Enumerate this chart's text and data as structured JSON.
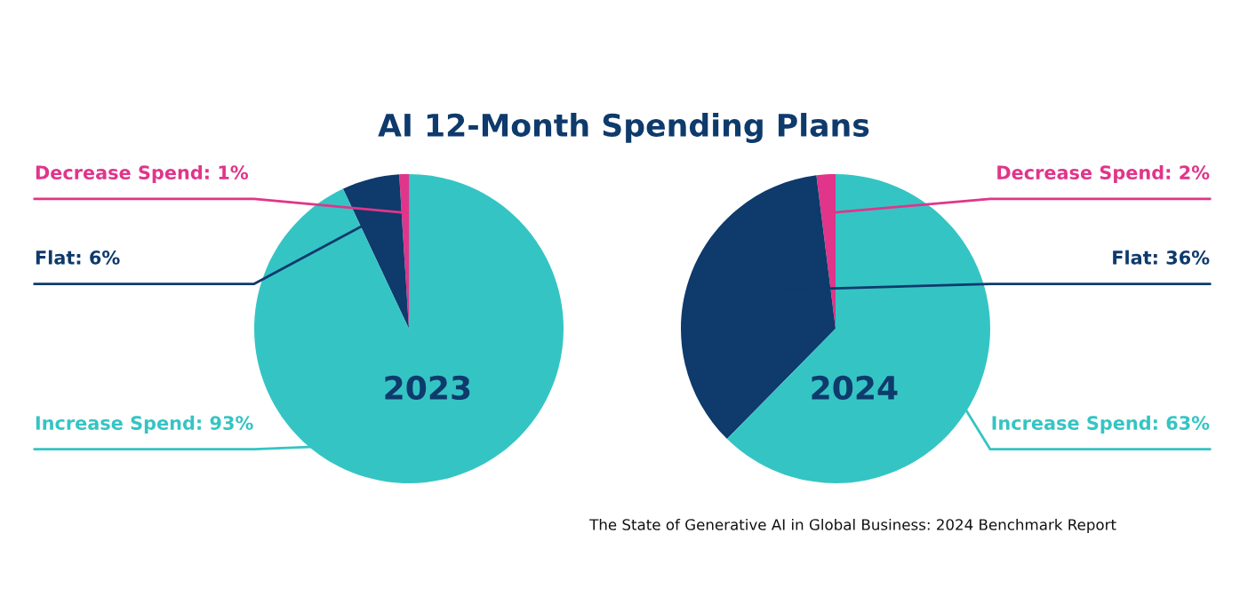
{
  "chart_data": [
    {
      "type": "pie",
      "title": "AI 12-Month Spending Plans",
      "subtitle": "2023",
      "categories": [
        "Decrease Spend: 1%",
        "Flat: 6%",
        "Increase Spend: 93%"
      ],
      "values": [
        1,
        6,
        93
      ],
      "colors": [
        "#e0358a",
        "#0e3a6c",
        "#35c4c4"
      ]
    },
    {
      "type": "pie",
      "subtitle": "2024",
      "categories": [
        "Decrease Spend: 2%",
        "Flat: 36%",
        "Increase Spend: 63%"
      ],
      "values": [
        2,
        36,
        63
      ],
      "colors": [
        "#e0358a",
        "#0e3a6c",
        "#35c4c4"
      ],
      "annotations": [
        "The State of Generative AI in Global Business: 2024 Benchmark Report"
      ]
    }
  ]
}
